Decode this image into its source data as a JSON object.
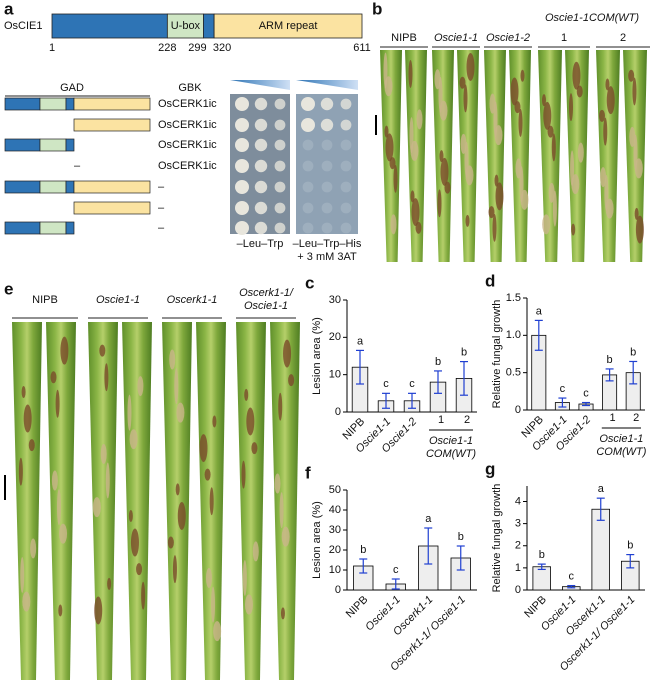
{
  "panel_a": {
    "letter": "a",
    "protein": "OsCIE1",
    "boundaries": [
      1,
      228,
      299,
      320,
      611
    ],
    "segment_labels": [
      null,
      "U-box",
      null,
      "ARM repeat"
    ],
    "segment_colors": [
      "#2e74b5",
      "#cfe6c4",
      "#2e74b5",
      "#fbe3a1"
    ],
    "gad_header": "GAD",
    "gbk_header": "GBK",
    "rows": [
      {
        "gbk": "OsCERK1ic"
      },
      {
        "gbk": "OsCERK1ic"
      },
      {
        "gbk": "OsCERK1ic"
      },
      {
        "gad": "–",
        "gbk": "OsCERK1ic"
      },
      {
        "gbk": "–"
      },
      {
        "gbk": "–"
      },
      {
        "gbk": "–"
      }
    ],
    "media": [
      {
        "lines": [
          "–Leu–Trp"
        ]
      },
      {
        "lines": [
          "–Leu–Trp–His",
          "+ 3 mM 3AT"
        ]
      }
    ]
  },
  "panel_b": {
    "letter": "b",
    "labels": [
      "NIPB",
      "Oscie1-1",
      "Oscie1-2"
    ],
    "com_label": "Oscie1-1COM(WT)",
    "com_lines": [
      "1",
      "2"
    ]
  },
  "panel_e": {
    "letter": "e",
    "labels": [
      [
        "NIPB"
      ],
      [
        "Oscie1-1"
      ],
      [
        "Oscerk1-1"
      ],
      [
        "Oscerk1-1/",
        "Oscie1-1"
      ]
    ]
  },
  "chart_data": [
    {
      "type": "bar",
      "panel": "c",
      "ylabel": "Lesion area (%)",
      "categories": [
        "NIPB",
        "Oscie1-1",
        "Oscie1-2",
        "1",
        "2"
      ],
      "values": [
        12,
        3,
        3,
        8,
        9
      ],
      "errors": [
        4.5,
        2,
        2,
        3,
        4.5
      ],
      "letters": [
        "a",
        "c",
        "c",
        "b",
        "b"
      ],
      "group_label": [
        "Oscie1-1",
        "COM(WT)"
      ],
      "ylim": [
        0,
        30
      ],
      "yticks": [
        0,
        10,
        20,
        30
      ],
      "color": "#eeeeee",
      "error_color": "#1f3fd1"
    },
    {
      "type": "bar",
      "panel": "d",
      "ylabel": "Relative fungal growth",
      "categories": [
        "NIPB",
        "Oscie1-1",
        "Oscie1-2",
        "1",
        "2"
      ],
      "values": [
        1.0,
        0.1,
        0.08,
        0.47,
        0.5
      ],
      "errors": [
        0.2,
        0.06,
        0.02,
        0.08,
        0.15
      ],
      "letters": [
        "a",
        "c",
        "c",
        "b",
        "b"
      ],
      "group_label": [
        "Oscie1-1",
        "COM(WT)"
      ],
      "ylim": [
        0,
        1.5
      ],
      "yticks": [
        0,
        0.5,
        {
          "value": 1,
          "label": "1.0"
        },
        1.5
      ],
      "color": "#eeeeee",
      "error_color": "#1f3fd1"
    },
    {
      "type": "bar",
      "panel": "f",
      "ylabel": "Lesion area (%)",
      "categories": [
        "NIPB",
        "Oscie1-1",
        "Oscerk1-1",
        "Oscerk1-1/ Oscie1-1"
      ],
      "values": [
        12,
        3,
        22,
        16
      ],
      "errors": [
        3.5,
        2.5,
        9,
        6
      ],
      "letters": [
        "b",
        "c",
        "a",
        "b"
      ],
      "ylim": [
        0,
        50
      ],
      "yticks": [
        0,
        10,
        20,
        30,
        40,
        50
      ],
      "color": "#eeeeee",
      "error_color": "#1f3fd1"
    },
    {
      "type": "bar",
      "panel": "g",
      "ylabel": "Relative fungal growth",
      "categories": [
        "NIPB",
        "Oscie1-1",
        "Oscerk1-1",
        "Oscerk1-1/ Oscie1-1"
      ],
      "values": [
        1.05,
        0.15,
        3.65,
        1.3
      ],
      "errors": [
        0.12,
        0.05,
        0.5,
        0.3
      ],
      "letters": [
        "b",
        "c",
        "a",
        "b"
      ],
      "ylim": [
        0,
        4.7
      ],
      "yticks": [
        0,
        1,
        2,
        3,
        4
      ],
      "color": "#eeeeee",
      "error_color": "#1f3fd1"
    }
  ]
}
